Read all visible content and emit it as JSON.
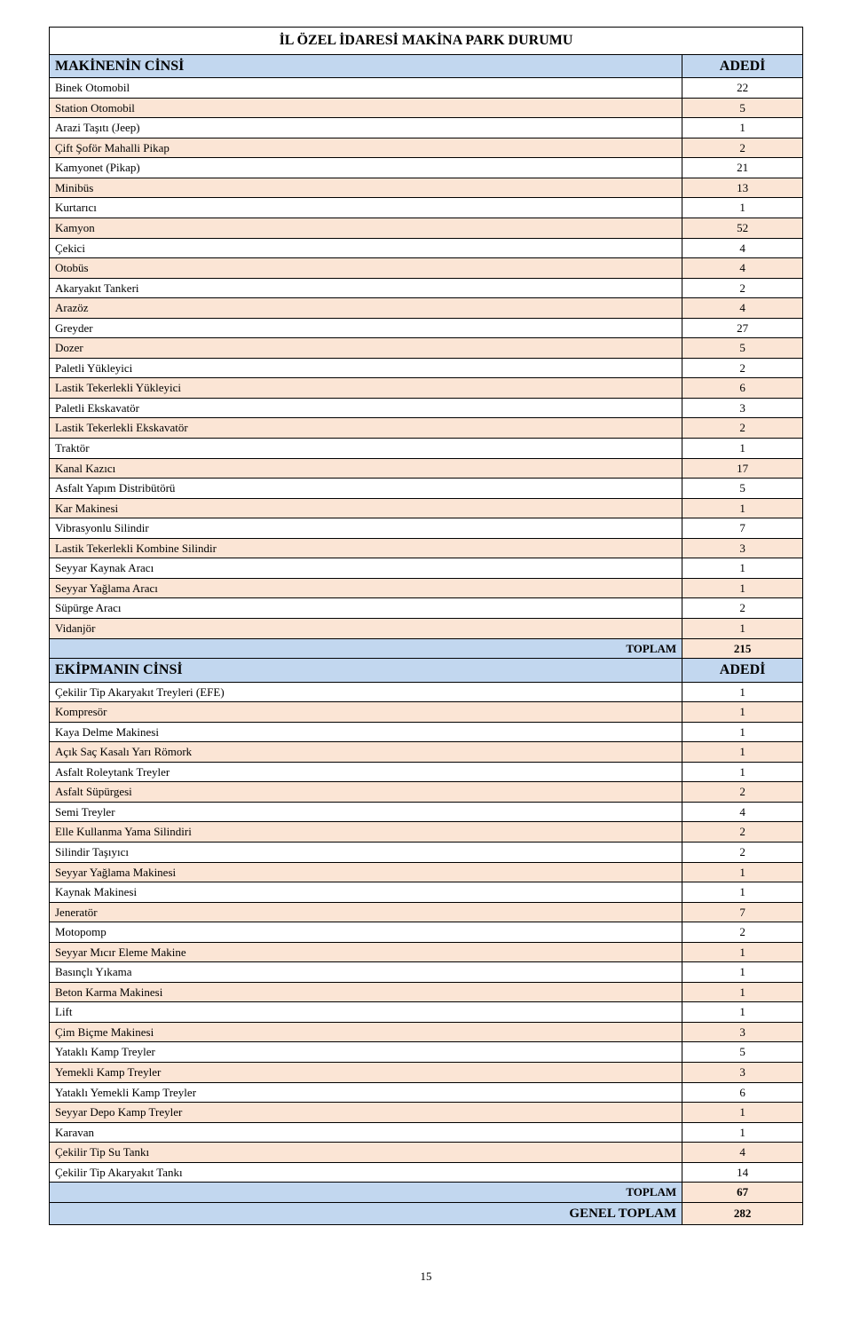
{
  "title": "İL ÖZEL İDARESİ MAKİNA PARK DURUMU",
  "section1": {
    "header_label": "MAKİNENİN CİNSİ",
    "header_value": "ADEDİ",
    "rows": [
      {
        "label": "Binek Otomobil",
        "value": "22"
      },
      {
        "label": "Station Otomobil",
        "value": "5"
      },
      {
        "label": "Arazi Taşıtı (Jeep)",
        "value": "1"
      },
      {
        "label": "Çift Şoför Mahalli Pikap",
        "value": "2"
      },
      {
        "label": "Kamyonet (Pikap)",
        "value": "21"
      },
      {
        "label": "Minibüs",
        "value": "13"
      },
      {
        "label": "Kurtarıcı",
        "value": "1"
      },
      {
        "label": "Kamyon",
        "value": "52"
      },
      {
        "label": "Çekici",
        "value": "4"
      },
      {
        "label": "Otobüs",
        "value": "4"
      },
      {
        "label": "Akaryakıt Tankeri",
        "value": "2"
      },
      {
        "label": "Arazöz",
        "value": "4"
      },
      {
        "label": "Greyder",
        "value": "27"
      },
      {
        "label": "Dozer",
        "value": "5"
      },
      {
        "label": "Paletli Yükleyici",
        "value": "2"
      },
      {
        "label": "Lastik Tekerlekli Yükleyici",
        "value": "6"
      },
      {
        "label": "Paletli Ekskavatör",
        "value": "3"
      },
      {
        "label": "Lastik Tekerlekli Ekskavatör",
        "value": "2"
      },
      {
        "label": "Traktör",
        "value": "1"
      },
      {
        "label": "Kanal Kazıcı",
        "value": "17"
      },
      {
        "label": "Asfalt Yapım Distribütörü",
        "value": "5"
      },
      {
        "label": "Kar Makinesi",
        "value": "1"
      },
      {
        "label": "Vibrasyonlu Silindir",
        "value": "7"
      },
      {
        "label": "Lastik Tekerlekli Kombine Silindir",
        "value": "3"
      },
      {
        "label": "Seyyar Kaynak Aracı",
        "value": "1"
      },
      {
        "label": "Seyyar Yağlama Aracı",
        "value": "1"
      },
      {
        "label": "Süpürge Aracı",
        "value": "2"
      },
      {
        "label": "Vidanjör",
        "value": "1"
      }
    ],
    "total_label": "TOPLAM",
    "total_value": "215"
  },
  "section2": {
    "header_label": "EKİPMANIN CİNSİ",
    "header_value": "ADEDİ",
    "rows": [
      {
        "label": "Çekilir Tip Akaryakıt Treyleri (EFE)",
        "value": "1"
      },
      {
        "label": "Kompresör",
        "value": "1"
      },
      {
        "label": "Kaya Delme Makinesi",
        "value": "1"
      },
      {
        "label": "Açık Saç Kasalı Yarı Römork",
        "value": "1"
      },
      {
        "label": "Asfalt Roleytank Treyler",
        "value": "1"
      },
      {
        "label": "Asfalt Süpürgesi",
        "value": "2"
      },
      {
        "label": "Semi Treyler",
        "value": "4"
      },
      {
        "label": "Elle Kullanma Yama Silindiri",
        "value": "2"
      },
      {
        "label": "Silindir Taşıyıcı",
        "value": "2"
      },
      {
        "label": "Seyyar Yağlama Makinesi",
        "value": "1"
      },
      {
        "label": "Kaynak Makinesi",
        "value": "1"
      },
      {
        "label": "Jeneratör",
        "value": "7"
      },
      {
        "label": "Motopomp",
        "value": "2"
      },
      {
        "label": "Seyyar Mıcır Eleme Makine",
        "value": "1"
      },
      {
        "label": "Basınçlı Yıkama",
        "value": "1"
      },
      {
        "label": "Beton Karma Makinesi",
        "value": "1"
      },
      {
        "label": "Lift",
        "value": "1"
      },
      {
        "label": "Çim Biçme Makinesi",
        "value": "3"
      },
      {
        "label": "Yataklı Kamp Treyler",
        "value": "5"
      },
      {
        "label": "Yemekli Kamp Treyler",
        "value": "3"
      },
      {
        "label": "Yataklı Yemekli Kamp Treyler",
        "value": "6"
      },
      {
        "label": "Seyyar Depo Kamp Treyler",
        "value": "1"
      },
      {
        "label": "Karavan",
        "value": "1"
      },
      {
        "label": "Çekilir Tip Su Tankı",
        "value": "4"
      },
      {
        "label": "Çekilir Tip Akaryakıt Tankı",
        "value": "14"
      }
    ],
    "total_label": "TOPLAM",
    "total_value": "67",
    "grand_total_label": "GENEL TOPLAM",
    "grand_total_value": "282"
  },
  "page_number": "15",
  "colors": {
    "header_bg": "#c2d7ef",
    "stripe_bg": "#fbe5d5",
    "border": "#000000",
    "page_bg": "#ffffff"
  }
}
